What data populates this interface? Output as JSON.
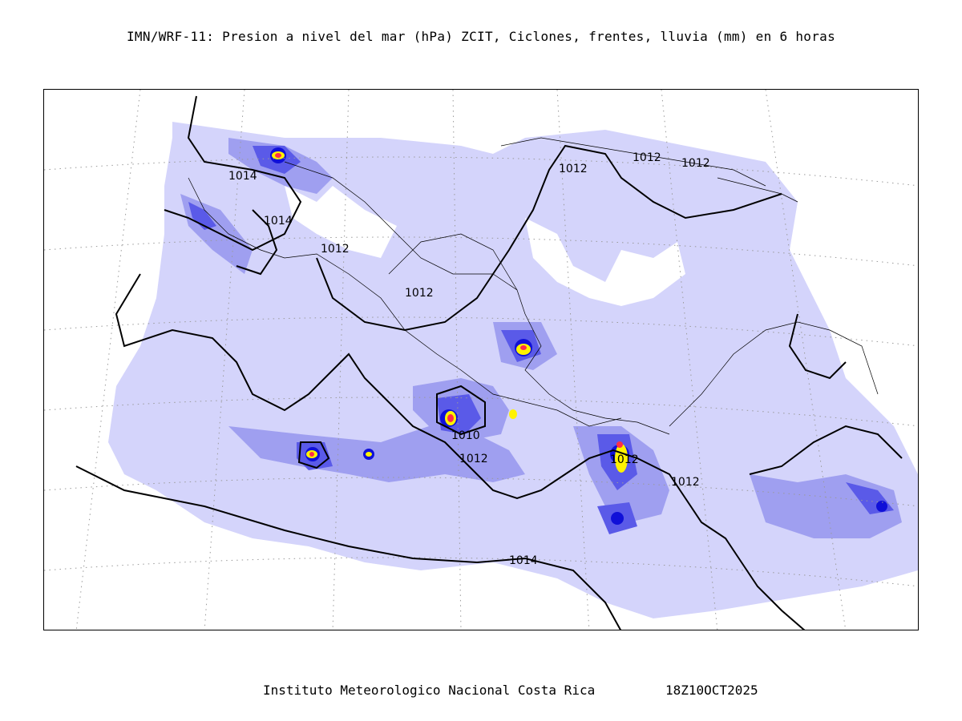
{
  "title": "IMN/WRF-11: Presion a nivel del mar (hPa) ZCIT, Ciclones, frentes, lluvia (mm) en 6 horas",
  "footer": {
    "institution": "Instituto Meteorologico Nacional Costa Rica",
    "timestamp": "18Z10OCT2025"
  },
  "colors": {
    "rain_light": "#d4d4fb",
    "rain_medium": "#9f9ff0",
    "rain_heavy": "#5a5ae8",
    "rain_very_heavy": "#1010d8",
    "rain_extreme_red": "#ff2e4a",
    "rain_extreme_yellow": "#fff200",
    "isobar": "#000000",
    "coastline": "#000000",
    "graticule": "#9a9a9a"
  },
  "isobar_labels": [
    "1014",
    "1014",
    "1012",
    "1012",
    "1012",
    "1012",
    "1010",
    "1012",
    "1012",
    "1012",
    "1014"
  ]
}
